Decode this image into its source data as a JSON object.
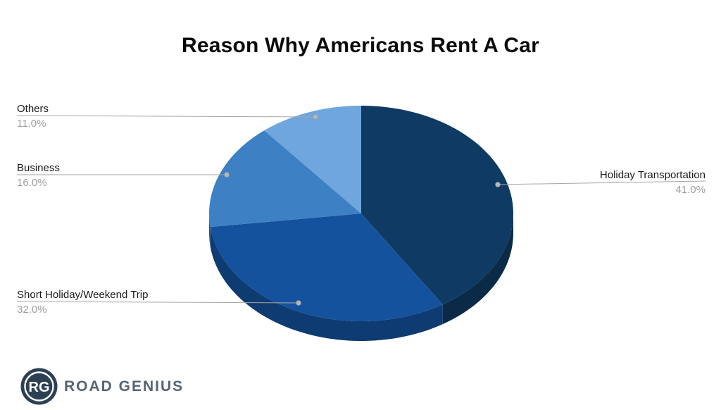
{
  "chart_data": {
    "type": "pie",
    "title": "Reason Why Americans Rent A Car",
    "categories": [
      "Holiday Transportation",
      "Short Holiday/Weekend Trip",
      "Business",
      "Others"
    ],
    "values": [
      41.0,
      32.0,
      16.0,
      11.0
    ],
    "value_labels": [
      "41.0%",
      "32.0%",
      "16.0%",
      "11.0%"
    ],
    "unit": "%",
    "colors": [
      "#0E3A63",
      "#14529D",
      "#3D80C4",
      "#6FA6DE"
    ],
    "is_3d": true,
    "start_angle_deg": 90,
    "direction": "clockwise",
    "legend_style": "callouts-with-leader-lines",
    "label_color": "#1A1A1A",
    "percent_color": "#9E9E9E",
    "leader_line_color": "#A6A6A6",
    "background": "#FFFFFF"
  },
  "branding": {
    "logo_monogram": "RG",
    "logo_text": "ROAD GENIUS",
    "logo_badge_color": "#2D4053",
    "logo_text_color": "#556572"
  }
}
